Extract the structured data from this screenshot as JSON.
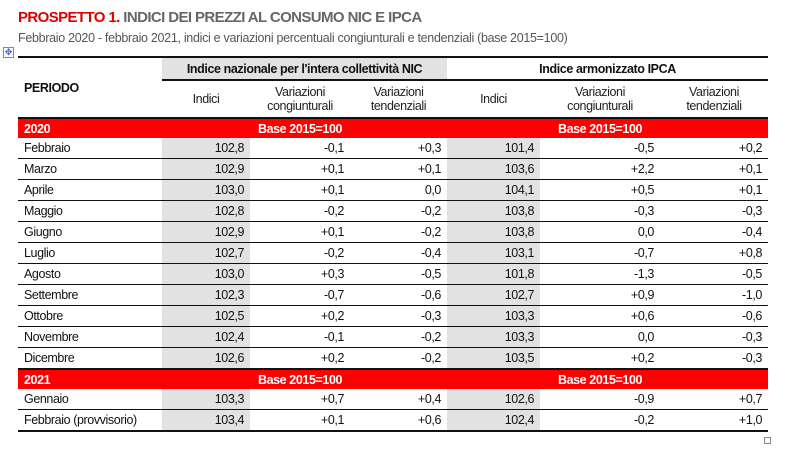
{
  "title": {
    "prefix": "PROSPETTO 1.",
    "main": " INDICI DEI PREZZI AL CONSUMO NIC E IPCA"
  },
  "subtitle": "Febbraio 2020 - febbraio 2021, indici e variazioni  percentuali congiunturali e tendenziali  (base 2015=100)",
  "colors": {
    "accent": "#ff0000",
    "shade": "#e2e2e2"
  },
  "header": {
    "periodo": "PERIODO",
    "nic": "Indice nazionale per l'intera collettività NIC",
    "ipca": "Indice armonizzato IPCA",
    "cols": [
      "Indici",
      "Variazioni congiunturali",
      "Variazioni tendenziali",
      "Indici",
      "Variazioni congiunturali",
      "Variazioni tendenziali"
    ]
  },
  "sections": [
    {
      "year": "2020",
      "base_nic": "Base 2015=100",
      "base_ipca": "Base 2015=100",
      "rows": [
        [
          "Febbraio",
          "102,8",
          "-0,1",
          "+0,3",
          "101,4",
          "-0,5",
          "+0,2"
        ],
        [
          "Marzo",
          "102,9",
          "+0,1",
          "+0,1",
          "103,6",
          "+2,2",
          "+0,1"
        ],
        [
          "Aprile",
          "103,0",
          "+0,1",
          "0,0",
          "104,1",
          "+0,5",
          "+0,1"
        ],
        [
          "Maggio",
          "102,8",
          "-0,2",
          "-0,2",
          "103,8",
          "-0,3",
          "-0,3"
        ],
        [
          "Giugno",
          "102,9",
          "+0,1",
          "-0,2",
          "103,8",
          "0,0",
          "-0,4"
        ],
        [
          "Luglio",
          "102,7",
          "-0,2",
          "-0,4",
          "103,1",
          "-0,7",
          "+0,8"
        ],
        [
          "Agosto",
          "103,0",
          "+0,3",
          "-0,5",
          "101,8",
          "-1,3",
          "-0,5"
        ],
        [
          "Settembre",
          "102,3",
          "-0,7",
          "-0,6",
          "102,7",
          "+0,9",
          "-1,0"
        ],
        [
          "Ottobre",
          "102,5",
          "+0,2",
          "-0,3",
          "103,3",
          "+0,6",
          "-0,6"
        ],
        [
          "Novembre",
          "102,4",
          "-0,1",
          "-0,2",
          "103,3",
          "0,0",
          "-0,3"
        ],
        [
          "Dicembre",
          "102,6",
          "+0,2",
          "-0,2",
          "103,5",
          "+0,2",
          "-0,3"
        ]
      ]
    },
    {
      "year": "2021",
      "base_nic": "Base 2015=100",
      "base_ipca": "Base 2015=100",
      "rows": [
        [
          "Gennaio",
          "103,3",
          "+0,7",
          "+0,4",
          "102,6",
          "-0,9",
          "+0,7"
        ],
        [
          "Febbraio (provvisorio)",
          "103,4",
          "+0,1",
          "+0,6",
          "102,4",
          "-0,2",
          "+1,0"
        ]
      ]
    }
  ]
}
